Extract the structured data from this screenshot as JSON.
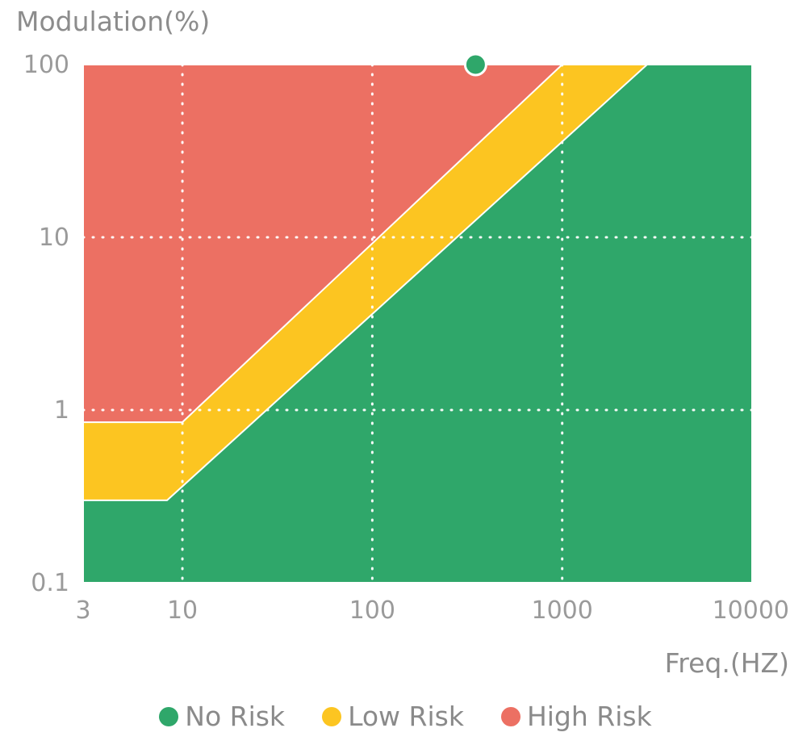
{
  "chart_data": {
    "type": "area",
    "ylabel": "Modulation(%)",
    "xlabel": "Freq.(HZ)",
    "x_scale": "log",
    "y_scale": "log",
    "xlim": [
      3,
      10000
    ],
    "ylim": [
      0.1,
      100
    ],
    "x_ticks": [
      3,
      10,
      100,
      1000,
      10000
    ],
    "x_tick_labels": [
      "3",
      "10",
      "100",
      "1000",
      "10000"
    ],
    "y_ticks": [
      0.1,
      1,
      10,
      100
    ],
    "y_tick_labels": [
      "0.1",
      "1",
      "10",
      "100"
    ],
    "grid": true,
    "regions": [
      {
        "name": "No Risk",
        "color": "#2fa76a",
        "upper_boundary": [
          [
            3,
            0.3
          ],
          [
            8.3,
            0.3
          ],
          [
            2800,
            100
          ]
        ]
      },
      {
        "name": "Low Risk",
        "color": "#fcc521",
        "upper_boundary": [
          [
            3,
            0.85
          ],
          [
            10,
            0.85
          ],
          [
            1000,
            100
          ]
        ]
      },
      {
        "name": "High Risk",
        "color": "#ec7063",
        "upper_boundary": [
          [
            3,
            100
          ],
          [
            10000,
            100
          ]
        ]
      }
    ],
    "points": [
      {
        "x": 350,
        "y": 100,
        "color": "#2fa76a"
      }
    ],
    "legend": [
      {
        "label": "No Risk",
        "color": "#2fa76a"
      },
      {
        "label": "Low Risk",
        "color": "#fcc521"
      },
      {
        "label": "High Risk",
        "color": "#ec7063"
      }
    ],
    "legend_position": "bottom"
  }
}
